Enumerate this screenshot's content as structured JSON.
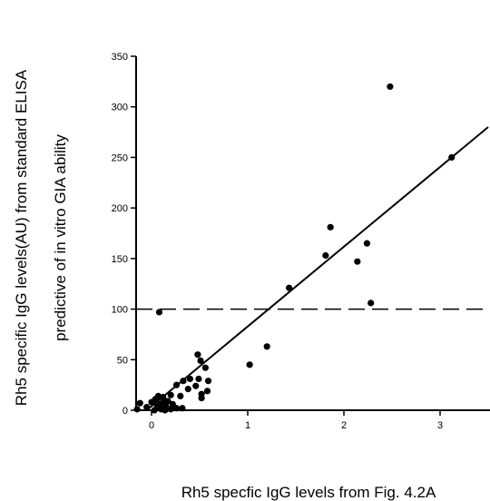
{
  "chart_data": {
    "type": "scatter",
    "xlabel": "Rh5 specfic IgG levels from Fig. 4.2A",
    "ylabel_line1": "Rh5 specific IgG levels(AU) from standard ELISA",
    "ylabel_line2": "predictive of  in vitro GIA ability",
    "xlim": [
      -0.2,
      3.5
    ],
    "ylim": [
      0,
      350
    ],
    "x_ticks": [
      0,
      1,
      2,
      3
    ],
    "x_tick_labels": [
      "0",
      "1",
      "2",
      "3"
    ],
    "y_ticks": [
      0,
      50,
      100,
      150,
      200,
      250,
      300,
      350
    ],
    "y_tick_labels": [
      "0",
      "50",
      "100",
      "150",
      "200",
      "250",
      "300",
      "350"
    ],
    "grid": false,
    "points": [
      {
        "x": 2.48,
        "y": 320
      },
      {
        "x": 3.12,
        "y": 250
      },
      {
        "x": 1.86,
        "y": 181
      },
      {
        "x": 2.24,
        "y": 165
      },
      {
        "x": 1.81,
        "y": 153
      },
      {
        "x": 2.14,
        "y": 147
      },
      {
        "x": 1.43,
        "y": 121
      },
      {
        "x": 2.28,
        "y": 106
      },
      {
        "x": 0.08,
        "y": 97
      },
      {
        "x": 1.2,
        "y": 63
      },
      {
        "x": 0.48,
        "y": 55
      },
      {
        "x": 1.02,
        "y": 45
      },
      {
        "x": 0.51,
        "y": 49
      },
      {
        "x": 0.56,
        "y": 42
      },
      {
        "x": 0.4,
        "y": 31
      },
      {
        "x": 0.49,
        "y": 31
      },
      {
        "x": 0.59,
        "y": 29
      },
      {
        "x": 0.33,
        "y": 29
      },
      {
        "x": 0.26,
        "y": 25
      },
      {
        "x": 0.46,
        "y": 24
      },
      {
        "x": 0.38,
        "y": 21
      },
      {
        "x": 0.58,
        "y": 19
      },
      {
        "x": 0.52,
        "y": 16
      },
      {
        "x": 0.52,
        "y": 12
      },
      {
        "x": 0.3,
        "y": 14
      },
      {
        "x": 0.2,
        "y": 15
      },
      {
        "x": 0.07,
        "y": 14
      },
      {
        "x": 0.12,
        "y": 13
      },
      {
        "x": 0.04,
        "y": 11
      },
      {
        "x": 0.17,
        "y": 9
      },
      {
        "x": 0.12,
        "y": 8
      },
      {
        "x": 0.0,
        "y": 8
      },
      {
        "x": -0.12,
        "y": 7
      },
      {
        "x": 0.09,
        "y": 6
      },
      {
        "x": 0.22,
        "y": 6
      },
      {
        "x": 0.06,
        "y": 4
      },
      {
        "x": 0.15,
        "y": 4
      },
      {
        "x": -0.05,
        "y": 3
      },
      {
        "x": 0.26,
        "y": 2
      },
      {
        "x": 0.32,
        "y": 2
      },
      {
        "x": 0.2,
        "y": 1
      },
      {
        "x": 0.1,
        "y": 1
      },
      {
        "x": -0.15,
        "y": 1
      },
      {
        "x": 0.03,
        "y": 0
      },
      {
        "x": 0.14,
        "y": 0
      }
    ],
    "regression_line": {
      "x": [
        -0.05,
        3.5
      ],
      "y": [
        0,
        280
      ]
    },
    "threshold_line": {
      "y": 100,
      "style": "dashed"
    }
  }
}
